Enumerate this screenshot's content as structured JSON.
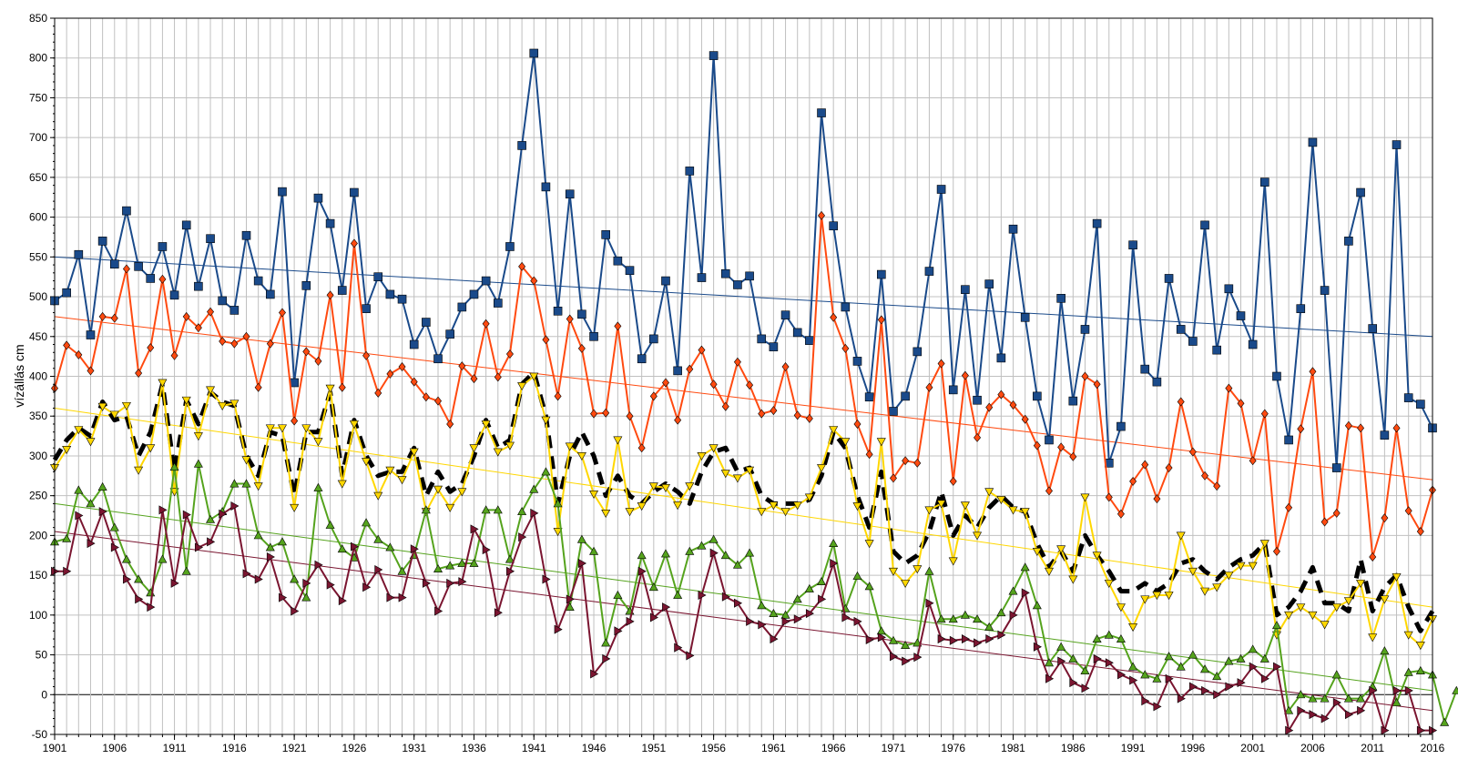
{
  "chart_data": {
    "type": "line",
    "title": "",
    "xlabel": "",
    "ylabel": "vízállás cm",
    "xlim": [
      1901,
      2016
    ],
    "ylim": [
      -50,
      850
    ],
    "y_ticks": [
      -50,
      0,
      50,
      100,
      150,
      200,
      250,
      300,
      350,
      400,
      450,
      500,
      550,
      600,
      650,
      700,
      750,
      800,
      850
    ],
    "x_ticks": [
      1901,
      1906,
      1911,
      1916,
      1921,
      1926,
      1931,
      1936,
      1941,
      1946,
      1951,
      1956,
      1961,
      1966,
      1971,
      1976,
      1981,
      1986,
      1991,
      1996,
      2001,
      2006,
      2011,
      2016
    ],
    "grid": true,
    "legend": "none",
    "x_start": 1901,
    "series": [
      {
        "color": "#1a4a8a",
        "marker": "square",
        "values": [
          495,
          505,
          553,
          452,
          570,
          541,
          608,
          538,
          523,
          563,
          502,
          590,
          513,
          573,
          495,
          483,
          577,
          520,
          503,
          632,
          392,
          514,
          624,
          592,
          508,
          631,
          485,
          525,
          503,
          497,
          440,
          468,
          422,
          453,
          487,
          503,
          520,
          492,
          563,
          690,
          806,
          638,
          482,
          629,
          478,
          450,
          578,
          545,
          533,
          422,
          447,
          520,
          407,
          658,
          524,
          803,
          529,
          515,
          526,
          447,
          437,
          477,
          455,
          445,
          731,
          589,
          487,
          419,
          374,
          528,
          356,
          375,
          431,
          532,
          635,
          383,
          509,
          370,
          516,
          423,
          585,
          474,
          375,
          320,
          498,
          369,
          459,
          592,
          291,
          337,
          565,
          409,
          393,
          523,
          459,
          444,
          590,
          433,
          510,
          476,
          440,
          644,
          400,
          320,
          485,
          694,
          508,
          285,
          570,
          631,
          460,
          326,
          691,
          373,
          365,
          335
        ]
      },
      {
        "color": "#ff4a10",
        "marker": "diamond",
        "values": [
          385,
          439,
          427,
          407,
          475,
          473,
          535,
          404,
          436,
          522,
          426,
          475,
          461,
          481,
          444,
          441,
          450,
          386,
          441,
          480,
          344,
          431,
          419,
          502,
          386,
          567,
          426,
          379,
          403,
          412,
          393,
          374,
          369,
          340,
          413,
          397,
          466,
          399,
          428,
          538,
          520,
          446,
          375,
          472,
          435,
          353,
          354,
          463,
          350,
          310,
          375,
          392,
          345,
          409,
          433,
          390,
          362,
          418,
          389,
          353,
          357,
          412,
          351,
          347,
          602,
          474,
          435,
          340,
          302,
          471,
          272,
          294,
          291,
          386,
          416,
          268,
          401,
          323,
          361,
          377,
          364,
          346,
          313,
          256,
          311,
          299,
          400,
          390,
          248,
          227,
          268,
          289,
          246,
          285,
          368,
          305,
          275,
          262,
          385,
          366,
          294,
          353,
          180,
          235,
          334,
          406,
          217,
          228,
          338,
          335,
          173,
          222,
          335,
          231,
          205,
          257
        ]
      },
      {
        "color": "#000000",
        "marker": "none",
        "dashed": true,
        "values": [
          295,
          320,
          335,
          325,
          368,
          345,
          350,
          300,
          330,
          390,
          280,
          370,
          340,
          380,
          368,
          363,
          300,
          275,
          330,
          325,
          250,
          330,
          330,
          380,
          275,
          345,
          300,
          275,
          280,
          280,
          310,
          250,
          280,
          255,
          265,
          300,
          345,
          310,
          320,
          390,
          405,
          350,
          240,
          300,
          330,
          300,
          250,
          275,
          250,
          240,
          255,
          265,
          255,
          240,
          280,
          305,
          310,
          280,
          285,
          250,
          240,
          240,
          240,
          245,
          275,
          330,
          310,
          250,
          210,
          280,
          180,
          165,
          175,
          205,
          255,
          200,
          225,
          210,
          235,
          250,
          235,
          230,
          190,
          160,
          180,
          155,
          200,
          175,
          155,
          130,
          130,
          140,
          130,
          140,
          165,
          170,
          155,
          145,
          160,
          170,
          175,
          190,
          100,
          110,
          130,
          160,
          115,
          115,
          105,
          170,
          105,
          135,
          150,
          110,
          80,
          105
        ]
      },
      {
        "color": "#ffd700",
        "marker": "triangle-down",
        "values": [
          285,
          308,
          333,
          318,
          362,
          352,
          363,
          282,
          310,
          392,
          255,
          370,
          325,
          383,
          363,
          366,
          295,
          262,
          335,
          335,
          235,
          335,
          318,
          385,
          265,
          340,
          293,
          250,
          282,
          270,
          305,
          230,
          258,
          235,
          255,
          310,
          340,
          305,
          313,
          388,
          400,
          345,
          205,
          312,
          300,
          252,
          228,
          320,
          230,
          237,
          262,
          260,
          238,
          262,
          300,
          310,
          278,
          272,
          282,
          230,
          238,
          230,
          238,
          248,
          285,
          333,
          318,
          237,
          190,
          318,
          155,
          140,
          158,
          232,
          240,
          168,
          238,
          200,
          255,
          245,
          232,
          230,
          180,
          155,
          183,
          145,
          248,
          175,
          140,
          110,
          85,
          120,
          125,
          125,
          200,
          155,
          130,
          135,
          150,
          162,
          162,
          190,
          75,
          100,
          110,
          100,
          88,
          110,
          118,
          140,
          72,
          120,
          148,
          75,
          62,
          95
        ]
      },
      {
        "color": "#55a31d",
        "marker": "triangle-up",
        "values": [
          192,
          196,
          257,
          240,
          261,
          210,
          170,
          145,
          128,
          170,
          286,
          155,
          290,
          220,
          230,
          265,
          265,
          200,
          185,
          192,
          145,
          122,
          260,
          213,
          183,
          172,
          216,
          195,
          185,
          155,
          175,
          232,
          158,
          162,
          165,
          165,
          232,
          232,
          170,
          230,
          258,
          280,
          240,
          110,
          195,
          180,
          65,
          125,
          105,
          175,
          135,
          177,
          125,
          180,
          187,
          195,
          175,
          163,
          178,
          112,
          102,
          100,
          120,
          133,
          142,
          190,
          108,
          149,
          136,
          80,
          68,
          62,
          65,
          155,
          95,
          95,
          100,
          95,
          85,
          103,
          130,
          160,
          112,
          40,
          60,
          45,
          30,
          70,
          75,
          70,
          35,
          25,
          20,
          48,
          35,
          50,
          32,
          23,
          42,
          45,
          57,
          45,
          87,
          -20,
          0,
          -5,
          -5,
          25,
          -5,
          -5,
          10,
          55,
          -10,
          28,
          30,
          25,
          -35,
          5
        ]
      },
      {
        "color": "#7a1530",
        "marker": "triangle-right",
        "values": [
          155,
          155,
          225,
          190,
          230,
          185,
          145,
          120,
          110,
          232,
          140,
          226,
          185,
          192,
          227,
          237,
          152,
          145,
          173,
          122,
          105,
          140,
          163,
          138,
          118,
          186,
          135,
          157,
          122,
          122,
          183,
          140,
          105,
          140,
          142,
          208,
          182,
          103,
          155,
          198,
          228,
          145,
          82,
          120,
          165,
          26,
          45,
          80,
          92,
          155,
          97,
          110,
          59,
          49,
          125,
          178,
          123,
          115,
          92,
          88,
          70,
          92,
          95,
          102,
          120,
          165,
          97,
          92,
          69,
          72,
          48,
          42,
          47,
          115,
          70,
          68,
          70,
          65,
          70,
          75,
          100,
          128,
          60,
          20,
          42,
          15,
          8,
          45,
          40,
          25,
          18,
          -8,
          -15,
          20,
          -5,
          10,
          5,
          0,
          10,
          15,
          35,
          20,
          35,
          -45,
          -20,
          -25,
          -30,
          -10,
          -25,
          -20,
          5,
          -45,
          5,
          5,
          -45,
          -45
        ]
      }
    ],
    "trendlines": [
      {
        "color": "#1a4a8a",
        "start": 550,
        "end": 450
      },
      {
        "color": "#ff4a10",
        "start": 475,
        "end": 270
      },
      {
        "color": "#ffd700",
        "start": 360,
        "end": 110
      },
      {
        "color": "#55a31d",
        "start": 240,
        "end": 5
      },
      {
        "color": "#7a1530",
        "start": 205,
        "end": -20
      }
    ]
  }
}
